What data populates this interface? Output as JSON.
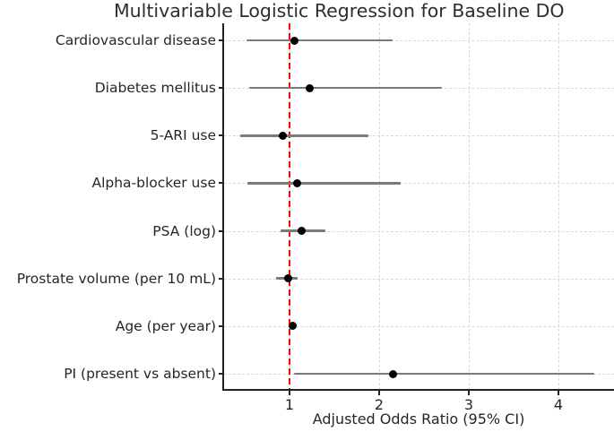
{
  "chart_data": {
    "type": "scatter",
    "variant": "forest-plot",
    "title": "Multivariable Logistic Regression for Baseline DO",
    "xlabel": "Adjusted Odds Ratio (95% CI)",
    "categories": [
      "Cardiovascular disease",
      "Diabetes mellitus",
      "5-ARI use",
      "Alpha-blocker use",
      "PSA (log)",
      "Prostate volume (per 10 mL)",
      "Age (per year)",
      "PI (present vs absent)"
    ],
    "series": [
      {
        "name": "Adjusted Odds Ratio (95% CI)",
        "or": [
          1.05,
          1.22,
          0.92,
          1.08,
          1.13,
          0.98,
          1.03,
          2.15
        ],
        "ci_low": [
          0.52,
          0.55,
          0.45,
          0.53,
          0.9,
          0.85,
          0.99,
          1.05
        ],
        "ci_high": [
          2.15,
          2.7,
          1.88,
          2.24,
          1.4,
          1.09,
          1.07,
          4.4
        ]
      }
    ],
    "xticks": [
      1,
      2,
      3,
      4
    ],
    "xlim": [
      0.27,
      4.62
    ],
    "reference_line_x": 1.0,
    "grid": true,
    "legend": "none",
    "colors": {
      "marker": "#000000",
      "ci_line": "#7a7a7a",
      "reference_line": "#ff0000",
      "gridline": "#d9d9d9",
      "axis": "#222222",
      "text": "#262626"
    }
  }
}
